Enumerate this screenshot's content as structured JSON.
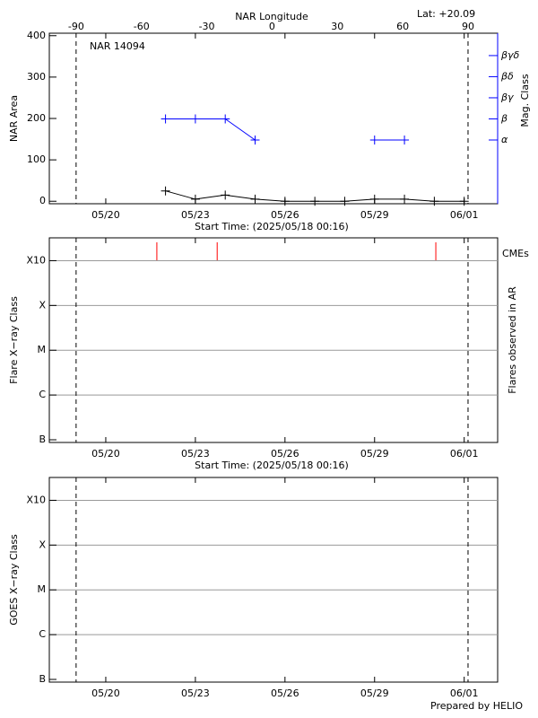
{
  "chart_data": [
    {
      "type": "line",
      "title": "NAR 14094",
      "subtitle": "Lat: +20.09",
      "x2label": "NAR Longitude",
      "xlabel": "Start Time: (2025/05/18 00:16)",
      "xlim": [
        0.11,
        15.12
      ],
      "xticks": [
        {
          "value": 2,
          "label": "05/20"
        },
        {
          "value": 5,
          "label": "05/23"
        },
        {
          "value": 8,
          "label": "05/26"
        },
        {
          "value": 11,
          "label": "05/29"
        },
        {
          "value": 14,
          "label": "06/01"
        }
      ],
      "x2lim": [
        -102.3,
        103.6
      ],
      "x2ticks": [
        -90,
        -60,
        -30,
        0,
        30,
        60,
        90
      ],
      "limbs": [
        -90,
        90
      ],
      "ylim": [
        -6,
        406
      ],
      "yticks": [
        0,
        100,
        200,
        300,
        400
      ],
      "y2lim": [
        -2.02,
        6.06
      ],
      "y2ticks": [
        {
          "value": 1,
          "label": "α"
        },
        {
          "value": 2,
          "label": "β"
        },
        {
          "value": 3,
          "label": "βγ"
        },
        {
          "value": 4,
          "label": "βδ"
        },
        {
          "value": 5,
          "label": "βγδ"
        }
      ],
      "series": [
        {
          "name": "NAR Area",
          "color": "#000000",
          "x": [
            4,
            5,
            6,
            7,
            8,
            9,
            10,
            11,
            12,
            13,
            14
          ],
          "values": [
            25,
            5,
            15,
            5,
            0,
            0,
            0,
            5,
            5,
            0,
            0
          ]
        },
        {
          "name": "Mag. Class",
          "color": "#0000ff",
          "axis": "y2",
          "x": [
            4,
            5,
            6,
            7,
            8,
            9,
            10,
            11,
            12
          ],
          "values": [
            2,
            2,
            2,
            1,
            null,
            null,
            null,
            1,
            1
          ]
        }
      ]
    },
    {
      "type": "timeline",
      "xlabel": "Start Time: (2025/05/18 00:16)",
      "ylabel": "Flare X−ray Class",
      "y2label": "Flares observed in AR",
      "xlim": [
        0.11,
        15.12
      ],
      "xticks": [
        {
          "value": 2,
          "label": "05/20"
        },
        {
          "value": 5,
          "label": "05/23"
        },
        {
          "value": 8,
          "label": "05/26"
        },
        {
          "value": 11,
          "label": "05/29"
        },
        {
          "value": 14,
          "label": "06/01"
        }
      ],
      "ylim": [
        -0.06,
        4.51
      ],
      "yticks": [
        {
          "value": 0,
          "label": "B"
        },
        {
          "value": 1,
          "label": "C"
        },
        {
          "value": 2,
          "label": "M"
        },
        {
          "value": 3,
          "label": "X"
        },
        {
          "value": 4,
          "label": "X10"
        }
      ],
      "grid": true,
      "series": [
        {
          "name": "CMEs",
          "color": "#ff0000",
          "x": [
            3.71,
            5.73,
            13.05
          ]
        }
      ]
    },
    {
      "type": "timeline",
      "ylabel": "GOES X−ray Class",
      "footer": "Prepared by HELIO",
      "xlim": [
        0.11,
        15.12
      ],
      "xticks": [
        {
          "value": 2,
          "label": "05/20"
        },
        {
          "value": 5,
          "label": "05/23"
        },
        {
          "value": 8,
          "label": "05/26"
        },
        {
          "value": 11,
          "label": "05/29"
        },
        {
          "value": 14,
          "label": "06/01"
        }
      ],
      "ylim": [
        -0.06,
        4.51
      ],
      "yticks": [
        {
          "value": 0,
          "label": "B"
        },
        {
          "value": 1,
          "label": "C"
        },
        {
          "value": 2,
          "label": "M"
        },
        {
          "value": 3,
          "label": "X"
        },
        {
          "value": 4,
          "label": "X10"
        }
      ],
      "grid": true,
      "series": []
    }
  ]
}
